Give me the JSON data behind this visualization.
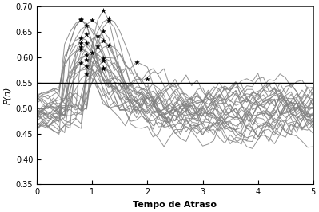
{
  "title": "",
  "xlabel": "Tempo de Atraso",
  "ylabel": "P(n)",
  "xlim": [
    0,
    5
  ],
  "ylim": [
    0.35,
    0.7
  ],
  "yticks": [
    0.35,
    0.4,
    0.45,
    0.5,
    0.55,
    0.6,
    0.65,
    0.7
  ],
  "xticks": [
    0,
    1,
    2,
    3,
    4,
    5
  ],
  "hline_y": 0.55,
  "hline_color": "#000000",
  "line_color": "#808080",
  "star_color": "#000000",
  "num_lines": 30,
  "seed": 7,
  "background_color": "#ffffff",
  "line_width": 0.7,
  "star_size": 18
}
